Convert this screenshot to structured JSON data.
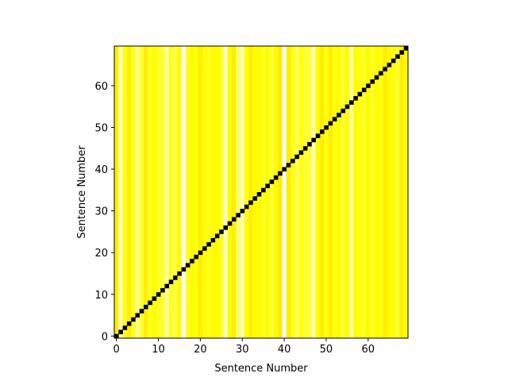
{
  "chart_data": {
    "type": "heatmap",
    "title": "",
    "xlabel": "Sentence Number",
    "ylabel": "Sentence Number",
    "n": 70,
    "xlim": [
      0,
      70
    ],
    "ylim": [
      0,
      70
    ],
    "x_ticks": [
      0,
      10,
      20,
      30,
      40,
      50,
      60
    ],
    "y_ticks": [
      0,
      10,
      20,
      30,
      40,
      50,
      60
    ],
    "colormap": "hot",
    "diagonal_value": 0,
    "column_values": [
      0.72,
      0.92,
      0.78,
      0.72,
      0.78,
      0.88,
      0.8,
      0.72,
      0.78,
      0.74,
      0.78,
      0.8,
      0.9,
      0.78,
      0.82,
      0.74,
      1.0,
      0.78,
      0.74,
      0.76,
      0.72,
      0.74,
      0.78,
      0.74,
      0.74,
      0.78,
      0.94,
      0.74,
      0.72,
      0.86,
      0.92,
      0.76,
      0.72,
      0.74,
      0.74,
      0.78,
      0.74,
      0.8,
      0.74,
      0.72,
      1.0,
      0.72,
      0.76,
      0.84,
      0.76,
      0.8,
      0.8,
      0.92,
      0.74,
      0.72,
      0.76,
      0.72,
      0.76,
      0.74,
      0.8,
      0.74,
      0.9,
      0.74,
      0.76,
      0.78,
      0.74,
      0.78,
      0.74,
      0.76,
      0.72,
      0.74,
      0.76,
      0.8,
      0.72,
      0.74
    ]
  }
}
